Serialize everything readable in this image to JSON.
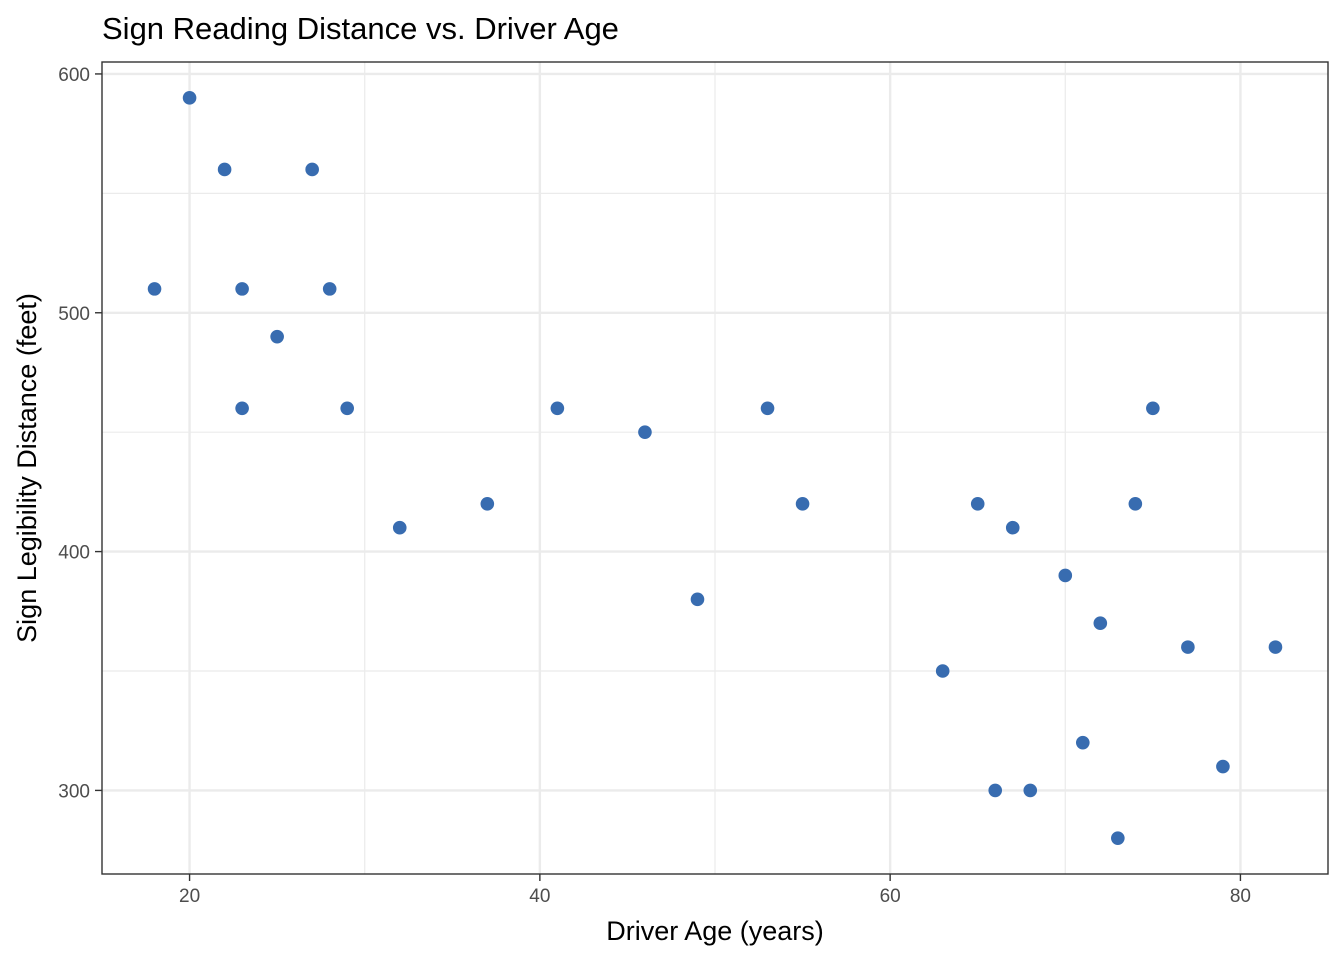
{
  "chart_data": {
    "type": "scatter",
    "title": "Sign Reading Distance vs. Driver Age",
    "xlabel": "Driver Age (years)",
    "ylabel": "Sign Legibility Distance (feet)",
    "xlim": [
      15,
      85
    ],
    "ylim": [
      265,
      605
    ],
    "x_ticks": [
      20,
      40,
      60,
      80
    ],
    "y_ticks": [
      300,
      400,
      500,
      600
    ],
    "x_tick_labels": [
      "20",
      "40",
      "60",
      "80"
    ],
    "y_tick_labels": [
      "300",
      "400",
      "500",
      "600"
    ],
    "grid": true,
    "legend": "none",
    "point_color": "#386CB0",
    "points": [
      {
        "x": 18,
        "y": 510
      },
      {
        "x": 20,
        "y": 590
      },
      {
        "x": 22,
        "y": 560
      },
      {
        "x": 23,
        "y": 510
      },
      {
        "x": 23,
        "y": 460
      },
      {
        "x": 25,
        "y": 490
      },
      {
        "x": 27,
        "y": 560
      },
      {
        "x": 28,
        "y": 510
      },
      {
        "x": 29,
        "y": 460
      },
      {
        "x": 32,
        "y": 410
      },
      {
        "x": 37,
        "y": 420
      },
      {
        "x": 41,
        "y": 460
      },
      {
        "x": 46,
        "y": 450
      },
      {
        "x": 49,
        "y": 380
      },
      {
        "x": 53,
        "y": 460
      },
      {
        "x": 55,
        "y": 420
      },
      {
        "x": 63,
        "y": 350
      },
      {
        "x": 65,
        "y": 420
      },
      {
        "x": 66,
        "y": 300
      },
      {
        "x": 67,
        "y": 410
      },
      {
        "x": 68,
        "y": 300
      },
      {
        "x": 70,
        "y": 390
      },
      {
        "x": 71,
        "y": 320
      },
      {
        "x": 72,
        "y": 370
      },
      {
        "x": 73,
        "y": 280
      },
      {
        "x": 74,
        "y": 420
      },
      {
        "x": 75,
        "y": 460
      },
      {
        "x": 77,
        "y": 360
      },
      {
        "x": 79,
        "y": 310
      },
      {
        "x": 82,
        "y": 360
      }
    ]
  }
}
